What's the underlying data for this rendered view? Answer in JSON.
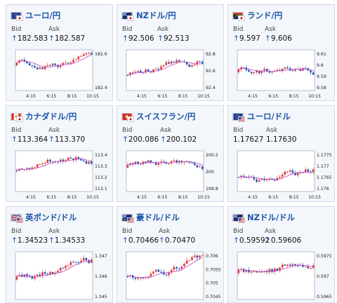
{
  "bid_label": "Bid",
  "ask_label": "Ask",
  "up_arrow": "↑",
  "colors": {
    "up": "#e03a3a",
    "down": "#1f4eb4",
    "ma": "#c055c8",
    "title": "#1a55a8",
    "card_bg": "#f3f6fa"
  },
  "cards": [
    {
      "pair": "ユーロ/円",
      "flag": "eu-jp",
      "bid": "182.583",
      "ask": "182.587",
      "bid_arrow": true,
      "ask_arrow": true,
      "x_ticks": [
        "4:15",
        "6:15",
        "8:15",
        "10:15"
      ],
      "y_ticks": [
        "182.6",
        "182.4"
      ]
    },
    {
      "pair": "NZドル/円",
      "flag": "nz-jp",
      "bid": "92.506",
      "ask": "92.513",
      "bid_arrow": true,
      "ask_arrow": true,
      "x_ticks": [
        "4:15",
        "6:15",
        "8:15",
        "10:15"
      ],
      "y_ticks": [
        "92.8",
        "92.6",
        "92.4"
      ]
    },
    {
      "pair": "ランド/円",
      "flag": "za-jp",
      "bid": "9.597",
      "ask": "9.606",
      "bid_arrow": true,
      "ask_arrow": true,
      "x_ticks": [
        "4:15",
        "6:15",
        "8:15",
        "10:15"
      ],
      "y_ticks": [
        "9.61",
        "9.6",
        "9.59",
        "9.58"
      ]
    },
    {
      "pair": "カナダドル/円",
      "flag": "ca-jp",
      "bid": "113.364",
      "ask": "113.370",
      "bid_arrow": true,
      "ask_arrow": true,
      "x_ticks": [
        "4:15",
        "6:15",
        "8:15",
        "10:15"
      ],
      "y_ticks": [
        "113.4",
        "113.3",
        "113.2",
        "113.1"
      ]
    },
    {
      "pair": "スイスフラン/円",
      "flag": "ch-jp",
      "bid": "200.086",
      "ask": "200.102",
      "bid_arrow": true,
      "ask_arrow": true,
      "x_ticks": [
        "4:15",
        "6:15",
        "8:15",
        "10:15"
      ],
      "y_ticks": [
        "200.2",
        "200",
        "199.8"
      ]
    },
    {
      "pair": "ユーロ/ドル",
      "flag": "eu-us",
      "bid": "1.17627",
      "ask": "1.17630",
      "bid_arrow": false,
      "ask_arrow": false,
      "x_ticks": [
        "4:15",
        "6:15",
        "8:15",
        "10:15"
      ],
      "y_ticks": [
        "1.1775",
        "1.177",
        "1.1765",
        "1.176"
      ]
    },
    {
      "pair": "英ポンド/ドル",
      "flag": "gb-us",
      "bid": "1.34523",
      "ask": "1.34533",
      "bid_arrow": true,
      "ask_arrow": true,
      "x_ticks": [],
      "y_ticks": [
        "1.347",
        "1.346",
        "1.345"
      ]
    },
    {
      "pair": "豪ドル/ドル",
      "flag": "au-us",
      "bid": "0.70466",
      "ask": "0.70470",
      "bid_arrow": true,
      "ask_arrow": true,
      "x_ticks": [],
      "y_ticks": [
        "0.706",
        "0.7055",
        "0.705",
        "0.7045"
      ]
    },
    {
      "pair": "NZドル/ドル",
      "flag": "nz-us",
      "bid": "0.59592",
      "ask": "0.59606",
      "bid_arrow": true,
      "ask_arrow": true,
      "x_ticks": [],
      "y_ticks": [
        "0.5975",
        "0.597",
        "0.5965"
      ]
    }
  ]
}
